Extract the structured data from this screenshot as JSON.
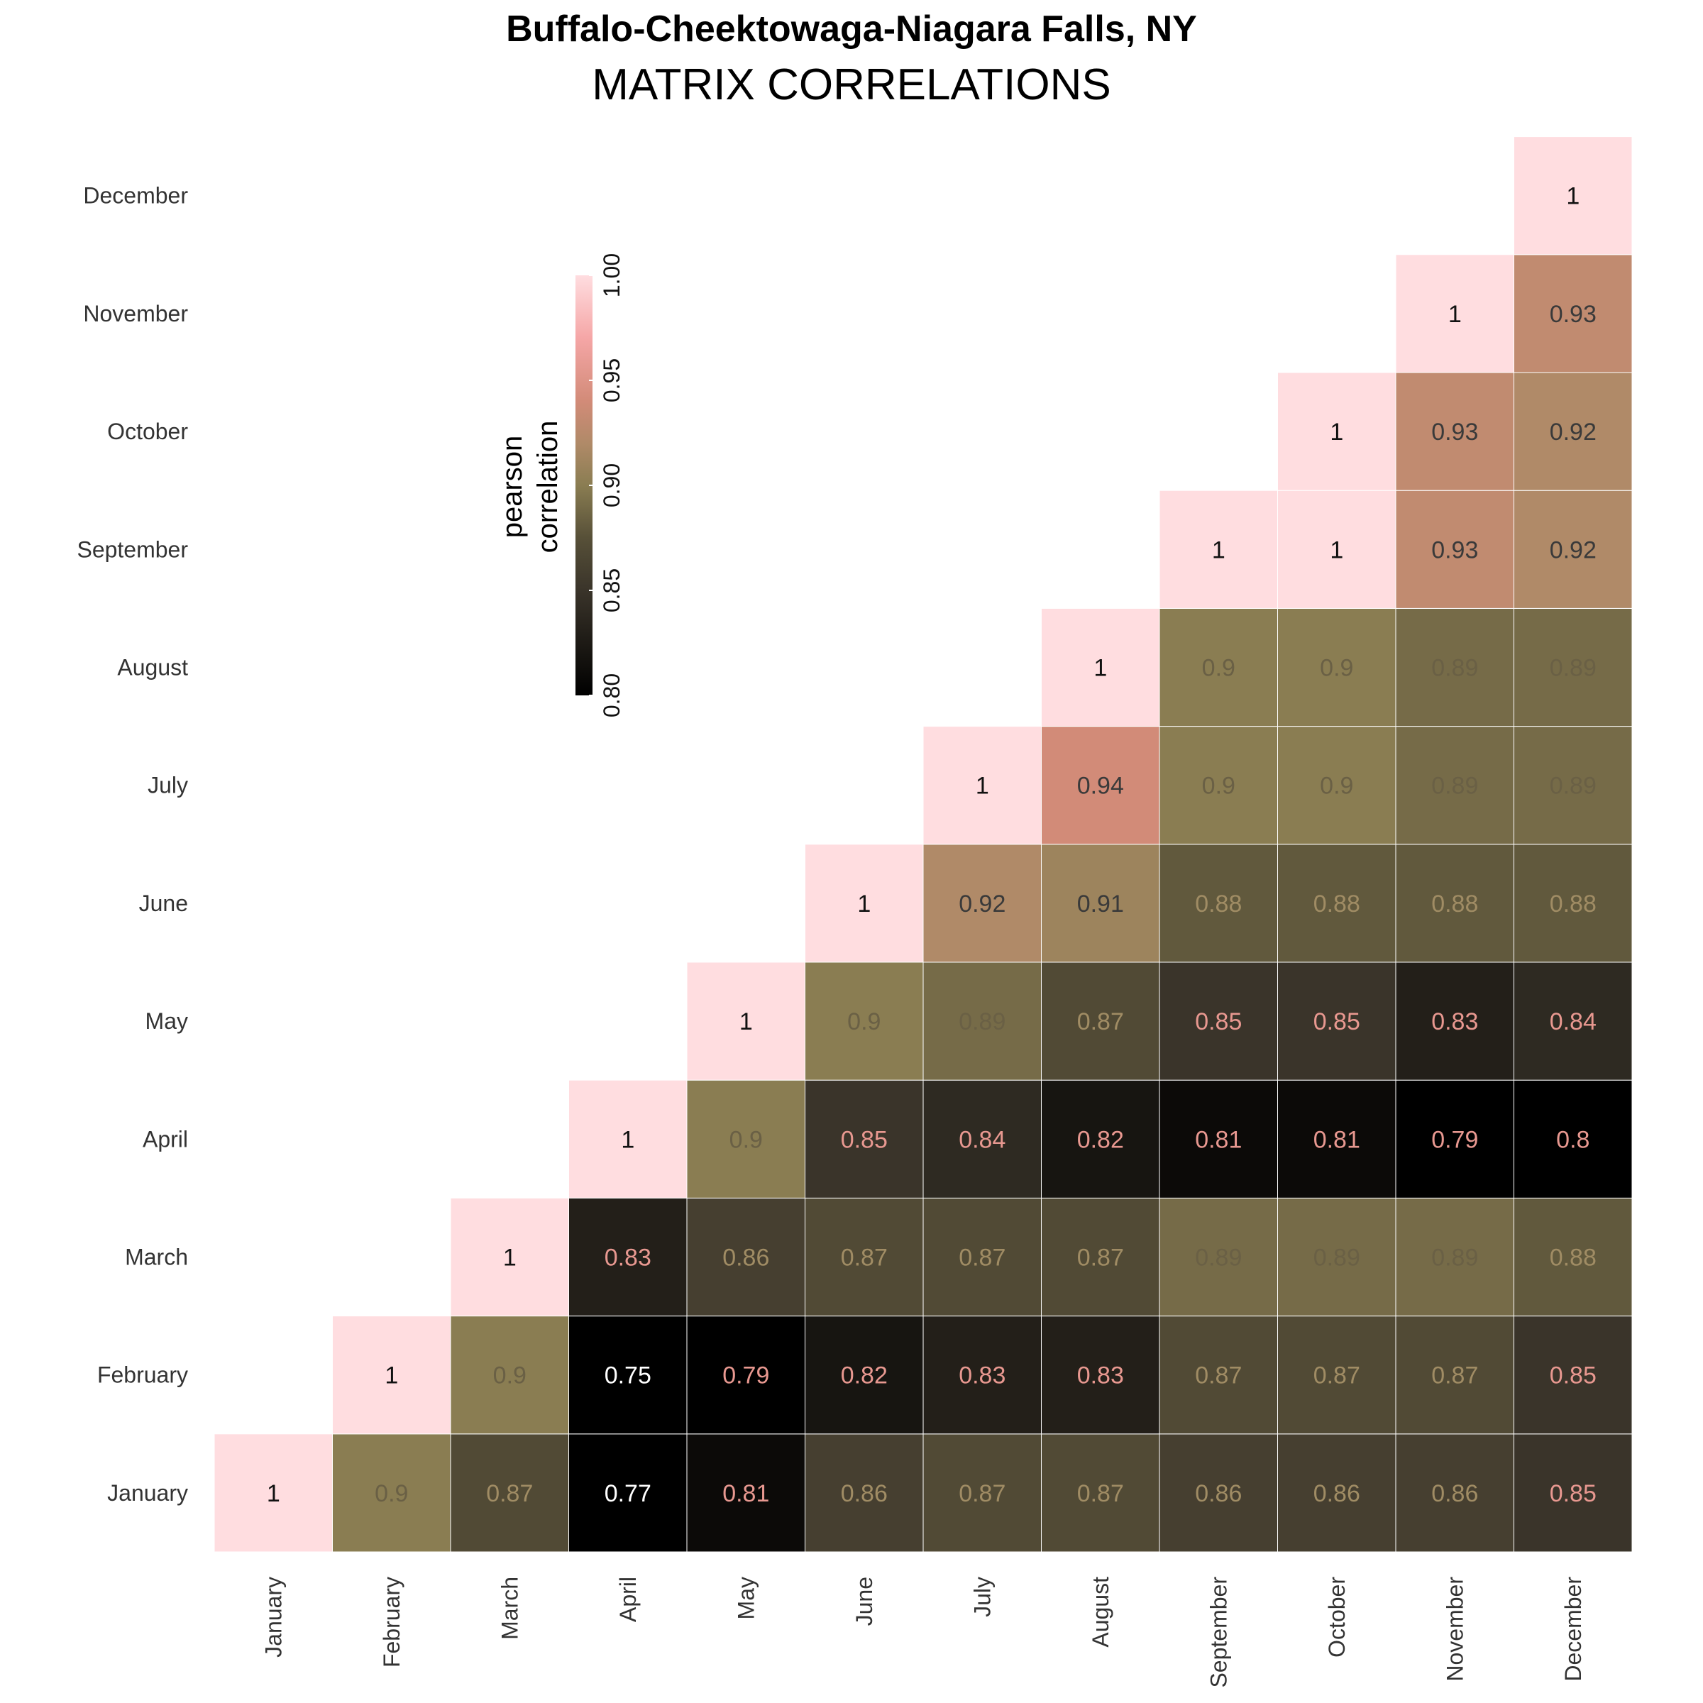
{
  "chart_data": {
    "type": "heatmap",
    "title": "Buffalo-Cheektowaga-Niagara Falls, NY",
    "subtitle": "MATRIX CORRELATIONS",
    "x_categories": [
      "January",
      "February",
      "March",
      "April",
      "May",
      "June",
      "July",
      "August",
      "September",
      "October",
      "November",
      "December"
    ],
    "y_categories": [
      "January",
      "February",
      "March",
      "April",
      "May",
      "June",
      "July",
      "August",
      "September",
      "October",
      "November",
      "December"
    ],
    "cells": [
      {
        "row": "January",
        "col": "January",
        "label": "1",
        "value": 1
      },
      {
        "row": "January",
        "col": "February",
        "label": "0.9",
        "value": 0.9
      },
      {
        "row": "January",
        "col": "March",
        "label": "0.87",
        "value": 0.87
      },
      {
        "row": "January",
        "col": "April",
        "label": "0.77",
        "value": 0.77
      },
      {
        "row": "January",
        "col": "May",
        "label": "0.81",
        "value": 0.81
      },
      {
        "row": "January",
        "col": "June",
        "label": "0.86",
        "value": 0.86
      },
      {
        "row": "January",
        "col": "July",
        "label": "0.87",
        "value": 0.87
      },
      {
        "row": "January",
        "col": "August",
        "label": "0.87",
        "value": 0.87
      },
      {
        "row": "January",
        "col": "September",
        "label": "0.86",
        "value": 0.86
      },
      {
        "row": "January",
        "col": "October",
        "label": "0.86",
        "value": 0.86
      },
      {
        "row": "January",
        "col": "November",
        "label": "0.86",
        "value": 0.86
      },
      {
        "row": "January",
        "col": "December",
        "label": "0.85",
        "value": 0.85
      },
      {
        "row": "February",
        "col": "February",
        "label": "1",
        "value": 1
      },
      {
        "row": "February",
        "col": "March",
        "label": "0.9",
        "value": 0.9
      },
      {
        "row": "February",
        "col": "April",
        "label": "0.75",
        "value": 0.75
      },
      {
        "row": "February",
        "col": "May",
        "label": "0.79",
        "value": 0.79
      },
      {
        "row": "February",
        "col": "June",
        "label": "0.82",
        "value": 0.82
      },
      {
        "row": "February",
        "col": "July",
        "label": "0.83",
        "value": 0.83
      },
      {
        "row": "February",
        "col": "August",
        "label": "0.83",
        "value": 0.83
      },
      {
        "row": "February",
        "col": "September",
        "label": "0.87",
        "value": 0.87
      },
      {
        "row": "February",
        "col": "October",
        "label": "0.87",
        "value": 0.87
      },
      {
        "row": "February",
        "col": "November",
        "label": "0.87",
        "value": 0.87
      },
      {
        "row": "February",
        "col": "December",
        "label": "0.85",
        "value": 0.85
      },
      {
        "row": "March",
        "col": "March",
        "label": "1",
        "value": 1
      },
      {
        "row": "March",
        "col": "April",
        "label": "0.83",
        "value": 0.83
      },
      {
        "row": "March",
        "col": "May",
        "label": "0.86",
        "value": 0.86
      },
      {
        "row": "March",
        "col": "June",
        "label": "0.87",
        "value": 0.87
      },
      {
        "row": "March",
        "col": "July",
        "label": "0.87",
        "value": 0.87
      },
      {
        "row": "March",
        "col": "August",
        "label": "0.87",
        "value": 0.87
      },
      {
        "row": "March",
        "col": "September",
        "label": "0.89",
        "value": 0.89
      },
      {
        "row": "March",
        "col": "October",
        "label": "0.89",
        "value": 0.89
      },
      {
        "row": "March",
        "col": "November",
        "label": "0.89",
        "value": 0.89
      },
      {
        "row": "March",
        "col": "December",
        "label": "0.88",
        "value": 0.88
      },
      {
        "row": "April",
        "col": "April",
        "label": "1",
        "value": 1
      },
      {
        "row": "April",
        "col": "May",
        "label": "0.9",
        "value": 0.9
      },
      {
        "row": "April",
        "col": "June",
        "label": "0.85",
        "value": 0.85
      },
      {
        "row": "April",
        "col": "July",
        "label": "0.84",
        "value": 0.84
      },
      {
        "row": "April",
        "col": "August",
        "label": "0.82",
        "value": 0.82
      },
      {
        "row": "April",
        "col": "September",
        "label": "0.81",
        "value": 0.81
      },
      {
        "row": "April",
        "col": "October",
        "label": "0.81",
        "value": 0.81
      },
      {
        "row": "April",
        "col": "November",
        "label": "0.79",
        "value": 0.79
      },
      {
        "row": "April",
        "col": "December",
        "label": "0.8",
        "value": 0.8
      },
      {
        "row": "May",
        "col": "May",
        "label": "1",
        "value": 1
      },
      {
        "row": "May",
        "col": "June",
        "label": "0.9",
        "value": 0.9
      },
      {
        "row": "May",
        "col": "July",
        "label": "0.89",
        "value": 0.89
      },
      {
        "row": "May",
        "col": "August",
        "label": "0.87",
        "value": 0.87
      },
      {
        "row": "May",
        "col": "September",
        "label": "0.85",
        "value": 0.85
      },
      {
        "row": "May",
        "col": "October",
        "label": "0.85",
        "value": 0.85
      },
      {
        "row": "May",
        "col": "November",
        "label": "0.83",
        "value": 0.83
      },
      {
        "row": "May",
        "col": "December",
        "label": "0.84",
        "value": 0.84
      },
      {
        "row": "June",
        "col": "June",
        "label": "1",
        "value": 1
      },
      {
        "row": "June",
        "col": "July",
        "label": "0.92",
        "value": 0.92
      },
      {
        "row": "June",
        "col": "August",
        "label": "0.91",
        "value": 0.91
      },
      {
        "row": "June",
        "col": "September",
        "label": "0.88",
        "value": 0.88
      },
      {
        "row": "June",
        "col": "October",
        "label": "0.88",
        "value": 0.88
      },
      {
        "row": "June",
        "col": "November",
        "label": "0.88",
        "value": 0.88
      },
      {
        "row": "June",
        "col": "December",
        "label": "0.88",
        "value": 0.88
      },
      {
        "row": "July",
        "col": "July",
        "label": "1",
        "value": 1
      },
      {
        "row": "July",
        "col": "August",
        "label": "0.94",
        "value": 0.94
      },
      {
        "row": "July",
        "col": "September",
        "label": "0.9",
        "value": 0.9
      },
      {
        "row": "July",
        "col": "October",
        "label": "0.9",
        "value": 0.9
      },
      {
        "row": "July",
        "col": "November",
        "label": "0.89",
        "value": 0.89
      },
      {
        "row": "July",
        "col": "December",
        "label": "0.89",
        "value": 0.89
      },
      {
        "row": "August",
        "col": "August",
        "label": "1",
        "value": 1
      },
      {
        "row": "August",
        "col": "September",
        "label": "0.9",
        "value": 0.9
      },
      {
        "row": "August",
        "col": "October",
        "label": "0.9",
        "value": 0.9
      },
      {
        "row": "August",
        "col": "November",
        "label": "0.89",
        "value": 0.89
      },
      {
        "row": "August",
        "col": "December",
        "label": "0.89",
        "value": 0.89
      },
      {
        "row": "September",
        "col": "September",
        "label": "1",
        "value": 1
      },
      {
        "row": "September",
        "col": "October",
        "label": "1",
        "value": 1
      },
      {
        "row": "September",
        "col": "November",
        "label": "0.93",
        "value": 0.93
      },
      {
        "row": "September",
        "col": "December",
        "label": "0.92",
        "value": 0.92
      },
      {
        "row": "October",
        "col": "October",
        "label": "1",
        "value": 1
      },
      {
        "row": "October",
        "col": "November",
        "label": "0.93",
        "value": 0.93
      },
      {
        "row": "October",
        "col": "December",
        "label": "0.92",
        "value": 0.92
      },
      {
        "row": "November",
        "col": "November",
        "label": "1",
        "value": 1
      },
      {
        "row": "November",
        "col": "December",
        "label": "0.93",
        "value": 0.93
      },
      {
        "row": "December",
        "col": "December",
        "label": "1",
        "value": 1
      }
    ],
    "legend": {
      "title_line1": "pearson",
      "title_line2": "correlation",
      "range": [
        0.8,
        1.0
      ],
      "ticks": [
        "0.80",
        "0.85",
        "0.90",
        "0.95",
        "1.00"
      ],
      "tick_values": [
        0.8,
        0.85,
        0.9,
        0.95,
        1.0
      ],
      "color_stops": [
        {
          "value": 0.8,
          "color": "#000000"
        },
        {
          "value": 0.85,
          "color": "#3a342a"
        },
        {
          "value": 0.875,
          "color": "#575038"
        },
        {
          "value": 0.9,
          "color": "#8a7d52"
        },
        {
          "value": 0.92,
          "color": "#b08a68"
        },
        {
          "value": 0.94,
          "color": "#d28b78"
        },
        {
          "value": 0.97,
          "color": "#f5a6a6"
        },
        {
          "value": 1.0,
          "color": "#ffdde0"
        }
      ]
    }
  }
}
